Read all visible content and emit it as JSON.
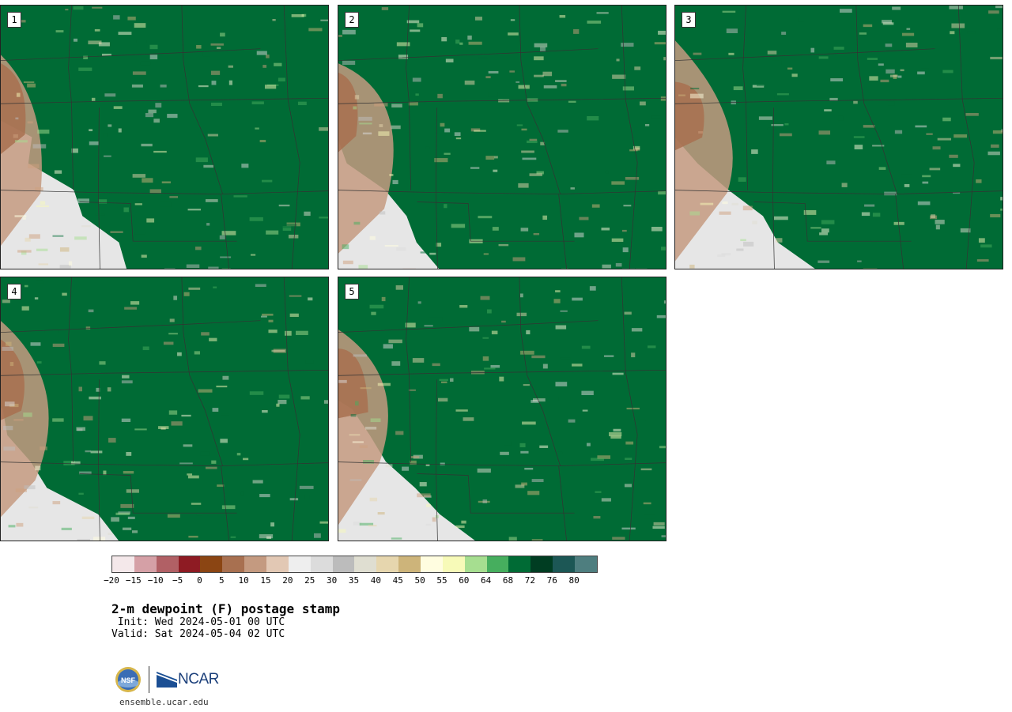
{
  "panels": [
    {
      "label": "1",
      "moisture": 0.35
    },
    {
      "label": "2",
      "moisture": 0.55
    },
    {
      "label": "3",
      "moisture": 0.45
    },
    {
      "label": "4",
      "moisture": 0.62
    },
    {
      "label": "5",
      "moisture": 0.42
    }
  ],
  "colorbar": {
    "colors": [
      "#f4e8ea",
      "#d5a0a6",
      "#b16065",
      "#8e1b23",
      "#8b4513",
      "#a87050",
      "#c49a80",
      "#e2c8b4",
      "#eeeeee",
      "#dcdcdc",
      "#bcbcbc",
      "#dfded1",
      "#e6d6ae",
      "#cdb47a",
      "#fffde0",
      "#f7fab8",
      "#a6de90",
      "#46ae5e",
      "#006b35",
      "#003d22",
      "#1c5755",
      "#4e7e7f"
    ],
    "tick_labels": [
      "−20",
      "−15",
      "−10",
      "−5",
      "0",
      "5",
      "10",
      "15",
      "20",
      "25",
      "30",
      "35",
      "40",
      "45",
      "50",
      "55",
      "60",
      "64",
      "68",
      "72",
      "76",
      "80"
    ]
  },
  "title": "2-m dewpoint (F) postage stamp",
  "init": " Init: Wed 2024-05-01 00 UTC",
  "valid": "Valid: Sat 2024-05-04 02 UTC",
  "logo": {
    "ncar_text": "NCAR",
    "nsf_text": "NSF"
  },
  "site": "ensemble.ucar.edu"
}
